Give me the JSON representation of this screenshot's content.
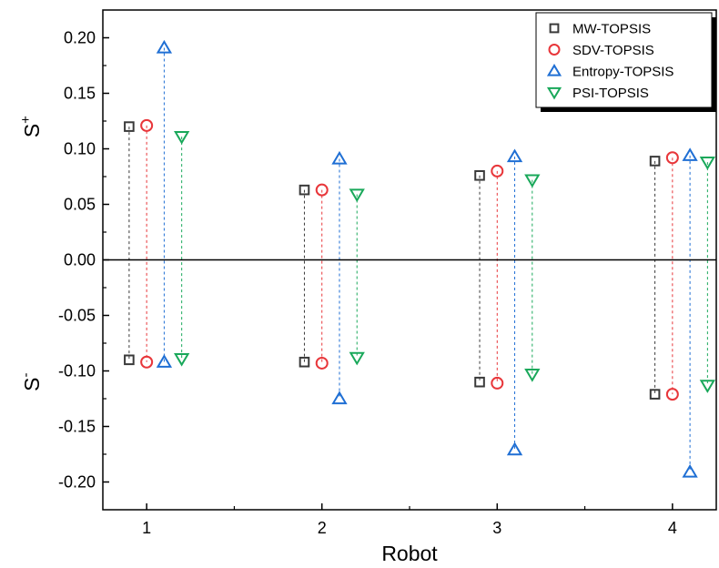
{
  "chart_data": {
    "type": "scatter",
    "xlabel": "Robot",
    "ylabel_upper": "S",
    "ylabel_upper_sup": "+",
    "ylabel_lower": "S",
    "ylabel_lower_sup": "-",
    "xlim": [
      0.75,
      4.25
    ],
    "ylim": [
      -0.225,
      0.225
    ],
    "x_ticks": [
      1,
      2,
      3,
      4
    ],
    "y_ticks": [
      -0.2,
      -0.15,
      -0.1,
      -0.05,
      0.0,
      0.05,
      0.1,
      0.15,
      0.2
    ],
    "y_tick_labels": [
      "-0.20",
      "-0.15",
      "-0.10",
      "-0.05",
      "0.00",
      "0.05",
      "0.10",
      "0.15",
      "0.20"
    ],
    "legend_position": "top-right",
    "series": [
      {
        "name": "MW-TOPSIS",
        "marker": "square",
        "color": "#3a3a3a",
        "offset": -0.1,
        "positive": [
          0.12,
          0.063,
          0.076,
          0.089
        ],
        "negative": [
          -0.09,
          -0.092,
          -0.11,
          -0.121
        ]
      },
      {
        "name": "SDV-TOPSIS",
        "marker": "circle",
        "color": "#e8363a",
        "offset": 0.0,
        "positive": [
          0.121,
          0.063,
          0.08,
          0.092
        ],
        "negative": [
          -0.092,
          -0.093,
          -0.111,
          -0.121
        ]
      },
      {
        "name": "Entropy-TOPSIS",
        "marker": "triangle-up",
        "color": "#1f6fd4",
        "offset": 0.1,
        "positive": [
          0.191,
          0.091,
          0.093,
          0.094
        ],
        "negative": [
          -0.092,
          -0.125,
          -0.171,
          -0.191
        ]
      },
      {
        "name": "PSI-TOPSIS",
        "marker": "triangle-down",
        "color": "#19a85a",
        "offset": 0.2,
        "positive": [
          0.111,
          0.059,
          0.072,
          0.088
        ],
        "negative": [
          -0.089,
          -0.088,
          -0.103,
          -0.113
        ]
      }
    ]
  }
}
